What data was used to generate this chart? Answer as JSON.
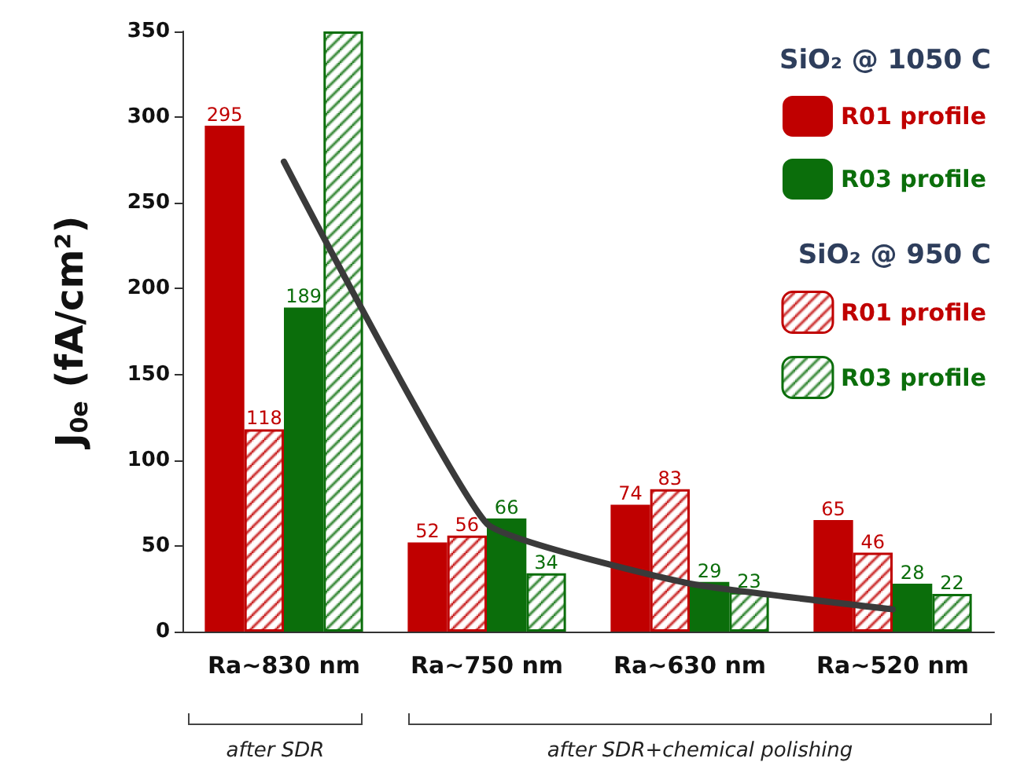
{
  "chart_data": {
    "type": "bar",
    "ylabel": "J$_{0e}$ (fA/cm²)",
    "categories": [
      "Ra~830 nm",
      "Ra~750 nm",
      "Ra~630 nm",
      "Ra~520 nm"
    ],
    "ylim": [
      0,
      350
    ],
    "yticks": [
      0,
      50,
      100,
      150,
      200,
      250,
      300,
      350
    ],
    "grid": false,
    "legend": "top right",
    "series": [
      {
        "name": "R01 profile",
        "color": "#c00000",
        "values": [
          295,
          52,
          74,
          65
        ],
        "value_labels": [
          "295",
          "52",
          "74",
          "65"
        ]
      },
      {
        "name": "R01 profile",
        "color": "#c00000",
        "values": [
          118,
          56,
          83,
          46
        ],
        "value_labels": [
          "118",
          "56",
          "83",
          "46"
        ]
      },
      {
        "name": "R03 profile",
        "color": "#0b6e0b",
        "values": [
          189,
          66,
          29,
          28
        ],
        "value_labels": [
          "189",
          "66",
          "29",
          "28"
        ]
      },
      {
        "name": "R03 profile",
        "color": "#0b6e0b",
        "values": [
          350,
          34,
          23,
          22
        ],
        "value_labels": [
          null,
          "34",
          "23",
          "22"
        ]
      },
      {
        "type": "line",
        "color": "#3a3a3a",
        "values": [
          274,
          63,
          28,
          13
        ],
        "marker": "none"
      }
    ],
    "annotations": [
      "SiO₂ @ 1050 C",
      "SiO₂ @ 950 C",
      "after SDR",
      "after SDR+chemical polishing"
    ]
  }
}
